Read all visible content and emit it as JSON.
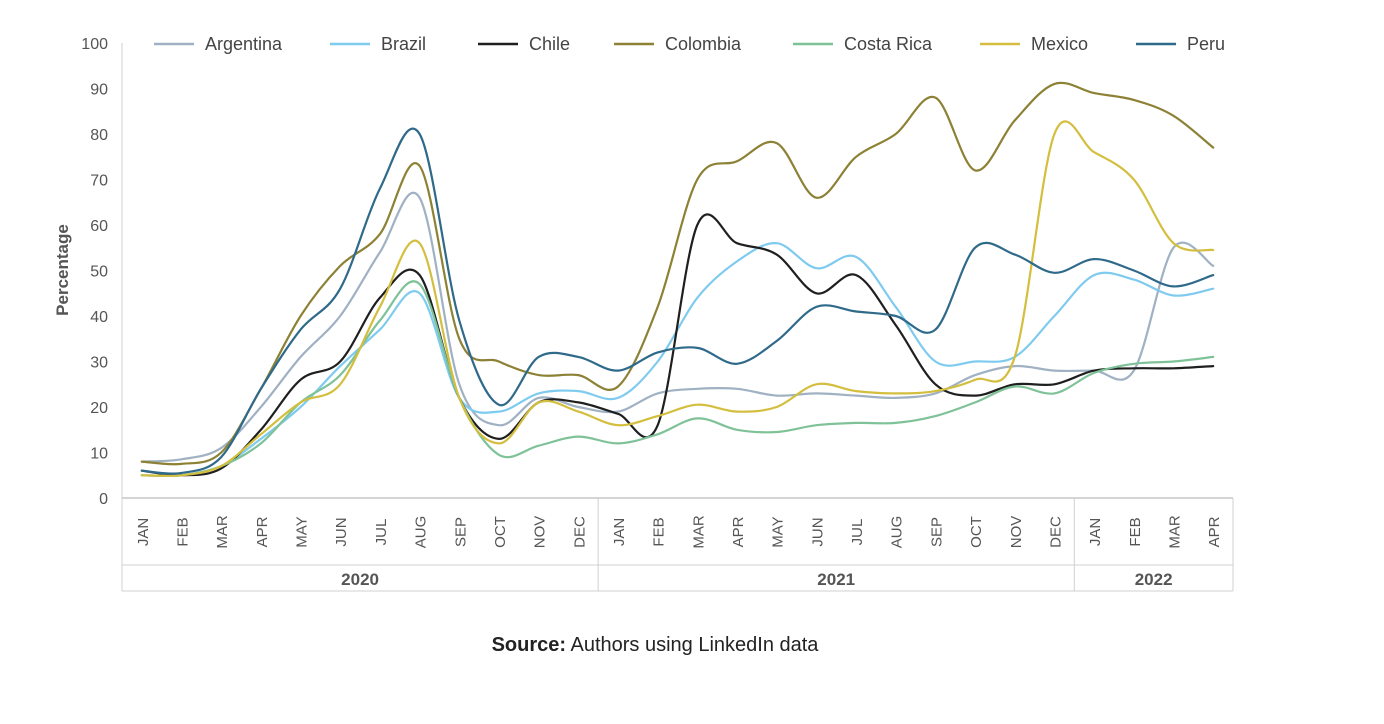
{
  "chart_data": {
    "type": "line",
    "title": "",
    "xlabel": "",
    "ylabel": "Percentage",
    "ylim": [
      0,
      100
    ],
    "yticks": [
      0,
      10,
      20,
      30,
      40,
      50,
      60,
      70,
      80,
      90,
      100
    ],
    "grid": false,
    "legend_position": "top",
    "categories": [
      "JAN",
      "FEB",
      "MAR",
      "APR",
      "MAY",
      "JUN",
      "JUL",
      "AUG",
      "SEP",
      "OCT",
      "NOV",
      "DEC",
      "JAN",
      "FEB",
      "MAR",
      "APR",
      "MAY",
      "JUN",
      "JUL",
      "AUG",
      "SEP",
      "OCT",
      "NOV",
      "DEC",
      "JAN",
      "FEB",
      "MAR",
      "APR"
    ],
    "years": [
      {
        "label": "2020",
        "span": 12
      },
      {
        "label": "2021",
        "span": 12
      },
      {
        "label": "2022",
        "span": 4
      }
    ],
    "series": [
      {
        "name": "Argentina",
        "color": "#9fb1c2",
        "values": [
          8,
          8.5,
          11,
          20,
          31,
          40,
          54,
          66,
          25,
          16,
          22,
          20,
          19,
          23,
          24,
          24,
          22.5,
          23,
          22.5,
          22,
          23,
          27,
          29,
          28,
          28,
          28,
          55,
          51
        ]
      },
      {
        "name": "Brazil",
        "color": "#7fcbef",
        "values": [
          5,
          5,
          7,
          13,
          20,
          29,
          37,
          45,
          22,
          19,
          23,
          23.5,
          22,
          30,
          44,
          52,
          56,
          50.5,
          53,
          42,
          30,
          30,
          31,
          40,
          49,
          48,
          44.5,
          46
        ]
      },
      {
        "name": "Chile",
        "color": "#1f1f1f",
        "values": [
          6,
          5,
          6.5,
          15,
          26,
          30,
          44,
          49,
          22,
          13,
          21,
          21,
          18.5,
          16,
          60,
          56,
          53.5,
          45,
          49,
          38,
          25,
          22.5,
          25,
          25,
          28,
          28.5,
          28.5,
          29
        ]
      },
      {
        "name": "Colombia",
        "color": "#8c8134",
        "values": [
          8,
          7.5,
          10,
          24,
          40,
          51,
          58,
          73,
          35,
          30,
          27,
          27,
          24.5,
          42,
          70,
          74,
          78,
          66,
          75,
          80,
          88,
          72,
          83,
          91,
          89,
          87.5,
          84,
          77
        ]
      },
      {
        "name": "Costa Rica",
        "color": "#7fc298",
        "values": [
          5,
          5,
          7,
          12,
          21,
          27,
          39,
          47,
          22,
          9.5,
          11.5,
          13.5,
          12,
          14,
          17.5,
          15,
          14.5,
          16,
          16.5,
          16.5,
          18,
          21,
          24.5,
          23,
          27.5,
          29.5,
          30,
          31
        ]
      },
      {
        "name": "Mexico",
        "color": "#d4be3e",
        "values": [
          5,
          5,
          7,
          14,
          21,
          25,
          42,
          56,
          22,
          12,
          21,
          19,
          16,
          18,
          20.5,
          19,
          20,
          25,
          23.5,
          23,
          23.5,
          26,
          31,
          80,
          76,
          70,
          56,
          54.5
        ]
      },
      {
        "name": "Peru",
        "color": "#2f6a8a",
        "values": [
          6,
          5.5,
          9,
          24,
          37,
          46,
          68,
          80,
          39,
          20.5,
          31,
          31,
          28,
          32,
          33,
          29.5,
          34.5,
          42,
          41,
          40,
          37,
          55,
          53.5,
          49.5,
          52.5,
          50,
          46.5,
          49
        ]
      }
    ]
  },
  "source": {
    "label": "Source:",
    "text": " Authors using LinkedIn data"
  }
}
